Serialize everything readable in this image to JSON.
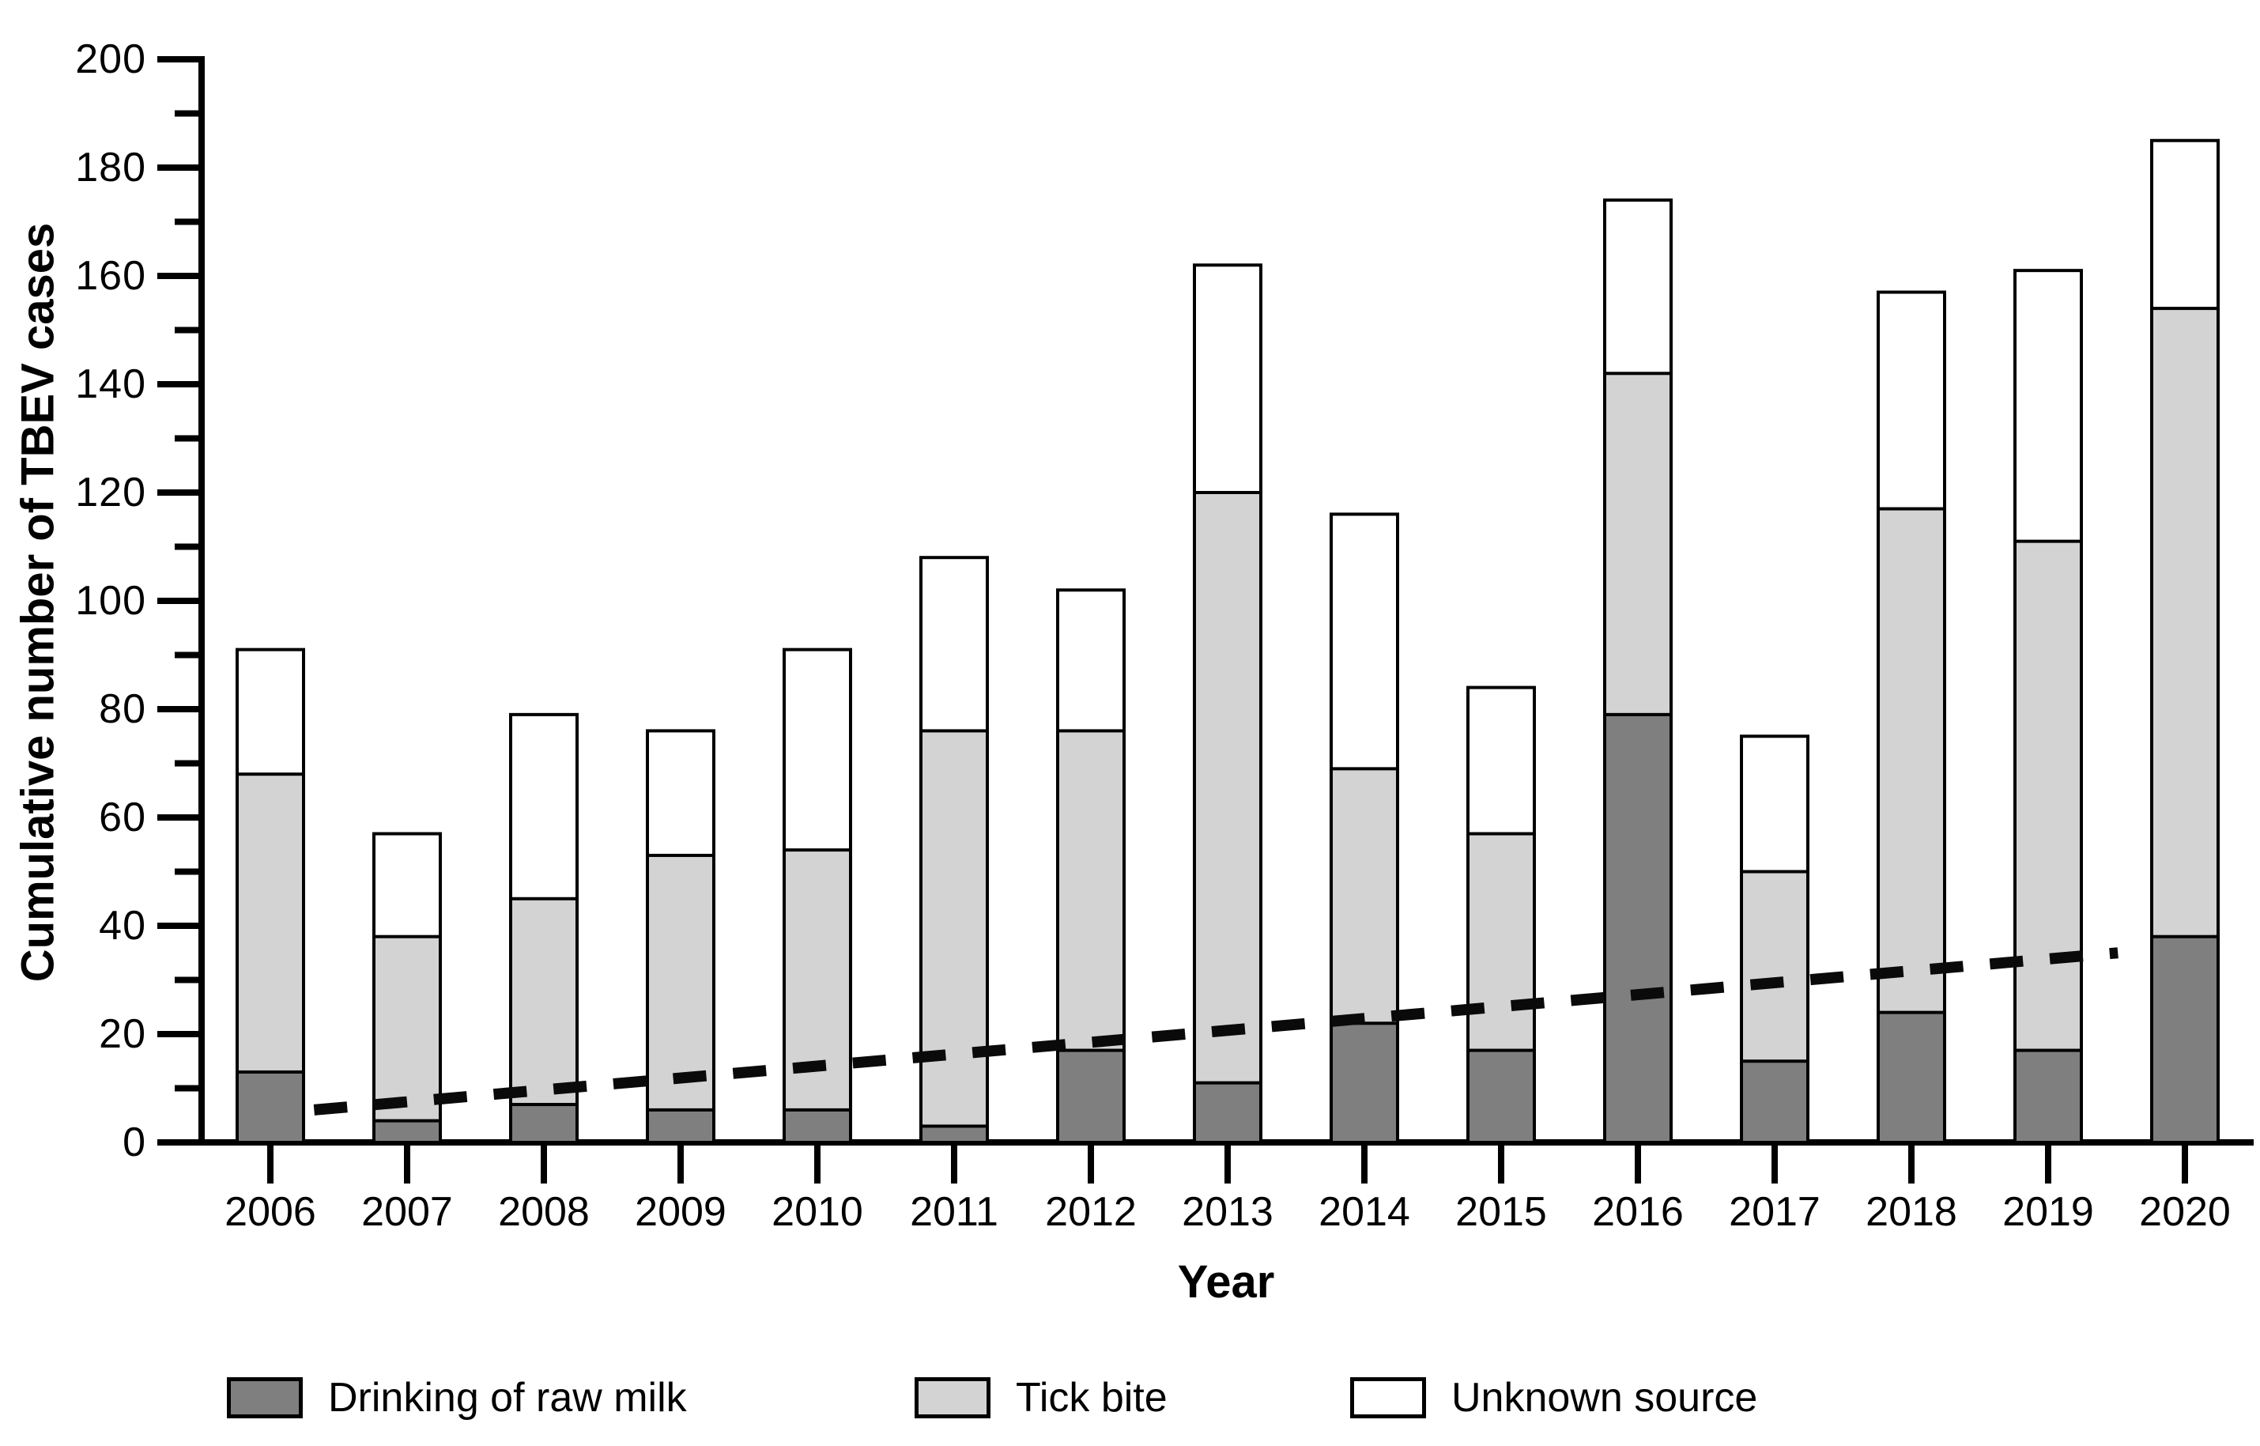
{
  "figure": {
    "background": "#ffffff",
    "axis_color": "#000000",
    "trend_color": "#0a0a0a"
  },
  "y_axis": {
    "title": "Cumulative number of TBEV cases",
    "min": 0,
    "max": 200,
    "major_step": 20,
    "minor_step": 10,
    "tick_labels": [
      "0",
      "20",
      "40",
      "60",
      "80",
      "100",
      "120",
      "140",
      "160",
      "180",
      "200"
    ]
  },
  "x_axis": {
    "title": "Year",
    "categories": [
      "2006",
      "2007",
      "2008",
      "2009",
      "2010",
      "2011",
      "2012",
      "2013",
      "2014",
      "2015",
      "2016",
      "2017",
      "2018",
      "2019",
      "2020"
    ]
  },
  "legend": {
    "items": [
      {
        "label": "Drinking of raw milk",
        "color": "#7f7f7f"
      },
      {
        "label": "Tick bite",
        "color": "#d3d3d3"
      },
      {
        "label": "Unknown source",
        "color": "#ffffff"
      }
    ]
  },
  "chart_data": {
    "type": "bar",
    "stacked": true,
    "title": "",
    "xlabel": "Year",
    "ylabel": "Cumulative number of TBEV cases",
    "ylim": [
      0,
      200
    ],
    "grid": false,
    "legend_position": "bottom",
    "categories": [
      "2006",
      "2007",
      "2008",
      "2009",
      "2010",
      "2011",
      "2012",
      "2013",
      "2014",
      "2015",
      "2016",
      "2017",
      "2018",
      "2019",
      "2020"
    ],
    "series": [
      {
        "name": "Drinking of raw milk",
        "color": "#7f7f7f",
        "values": [
          13,
          4,
          7,
          6,
          6,
          3,
          17,
          11,
          22,
          17,
          79,
          15,
          24,
          17,
          38
        ]
      },
      {
        "name": "Tick bite",
        "color": "#d3d3d3",
        "values": [
          55,
          34,
          38,
          47,
          48,
          73,
          59,
          109,
          47,
          40,
          63,
          35,
          93,
          94,
          116
        ]
      },
      {
        "name": "Unknown source",
        "color": "#ffffff",
        "values": [
          23,
          19,
          34,
          23,
          37,
          32,
          26,
          42,
          47,
          27,
          32,
          25,
          40,
          50,
          31
        ]
      }
    ],
    "totals": [
      91,
      57,
      79,
      76,
      91,
      108,
      102,
      162,
      116,
      84,
      174,
      75,
      157,
      161,
      185
    ],
    "trend_line": {
      "style": "dashed",
      "x_start_year": 2006.32,
      "x_end_year": 2019.51,
      "value_start": 6,
      "value_end": 35
    }
  }
}
